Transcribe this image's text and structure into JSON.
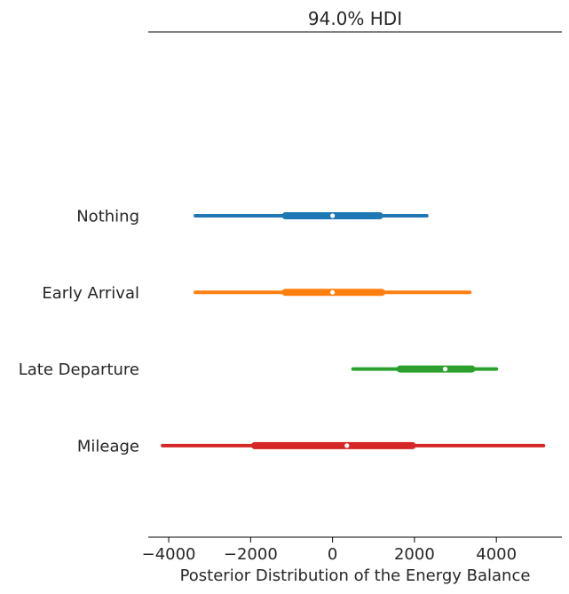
{
  "chart_data": {
    "type": "forest",
    "title": "94.0% HDI",
    "xlabel": "Posterior Distribution of the Energy Balance",
    "ylabel": "",
    "xlim": [
      -4500,
      5600
    ],
    "xticks": [
      -4000,
      -2000,
      0,
      2000,
      4000
    ],
    "xtick_labels": [
      "−4000",
      "−2000",
      "0",
      "2000",
      "4000"
    ],
    "grid": false,
    "series": [
      {
        "name": "Nothing",
        "color": "#1f77b4",
        "hdi94": [
          -3350,
          2300
        ],
        "iqr": [
          -1150,
          1150
        ],
        "median": 0
      },
      {
        "name": "Early Arrival",
        "color": "#ff7f0e",
        "hdi94": [
          -3350,
          3350
        ],
        "iqr": [
          -1150,
          1200
        ],
        "median": 0
      },
      {
        "name": "Late Departure",
        "color": "#2ca02c",
        "hdi94": [
          500,
          4000
        ],
        "iqr": [
          1650,
          3400
        ],
        "median": 2750
      },
      {
        "name": "Mileage",
        "color": "#d62728",
        "hdi94": [
          -4150,
          5150
        ],
        "iqr": [
          -1900,
          1950
        ],
        "median": 350
      }
    ]
  }
}
